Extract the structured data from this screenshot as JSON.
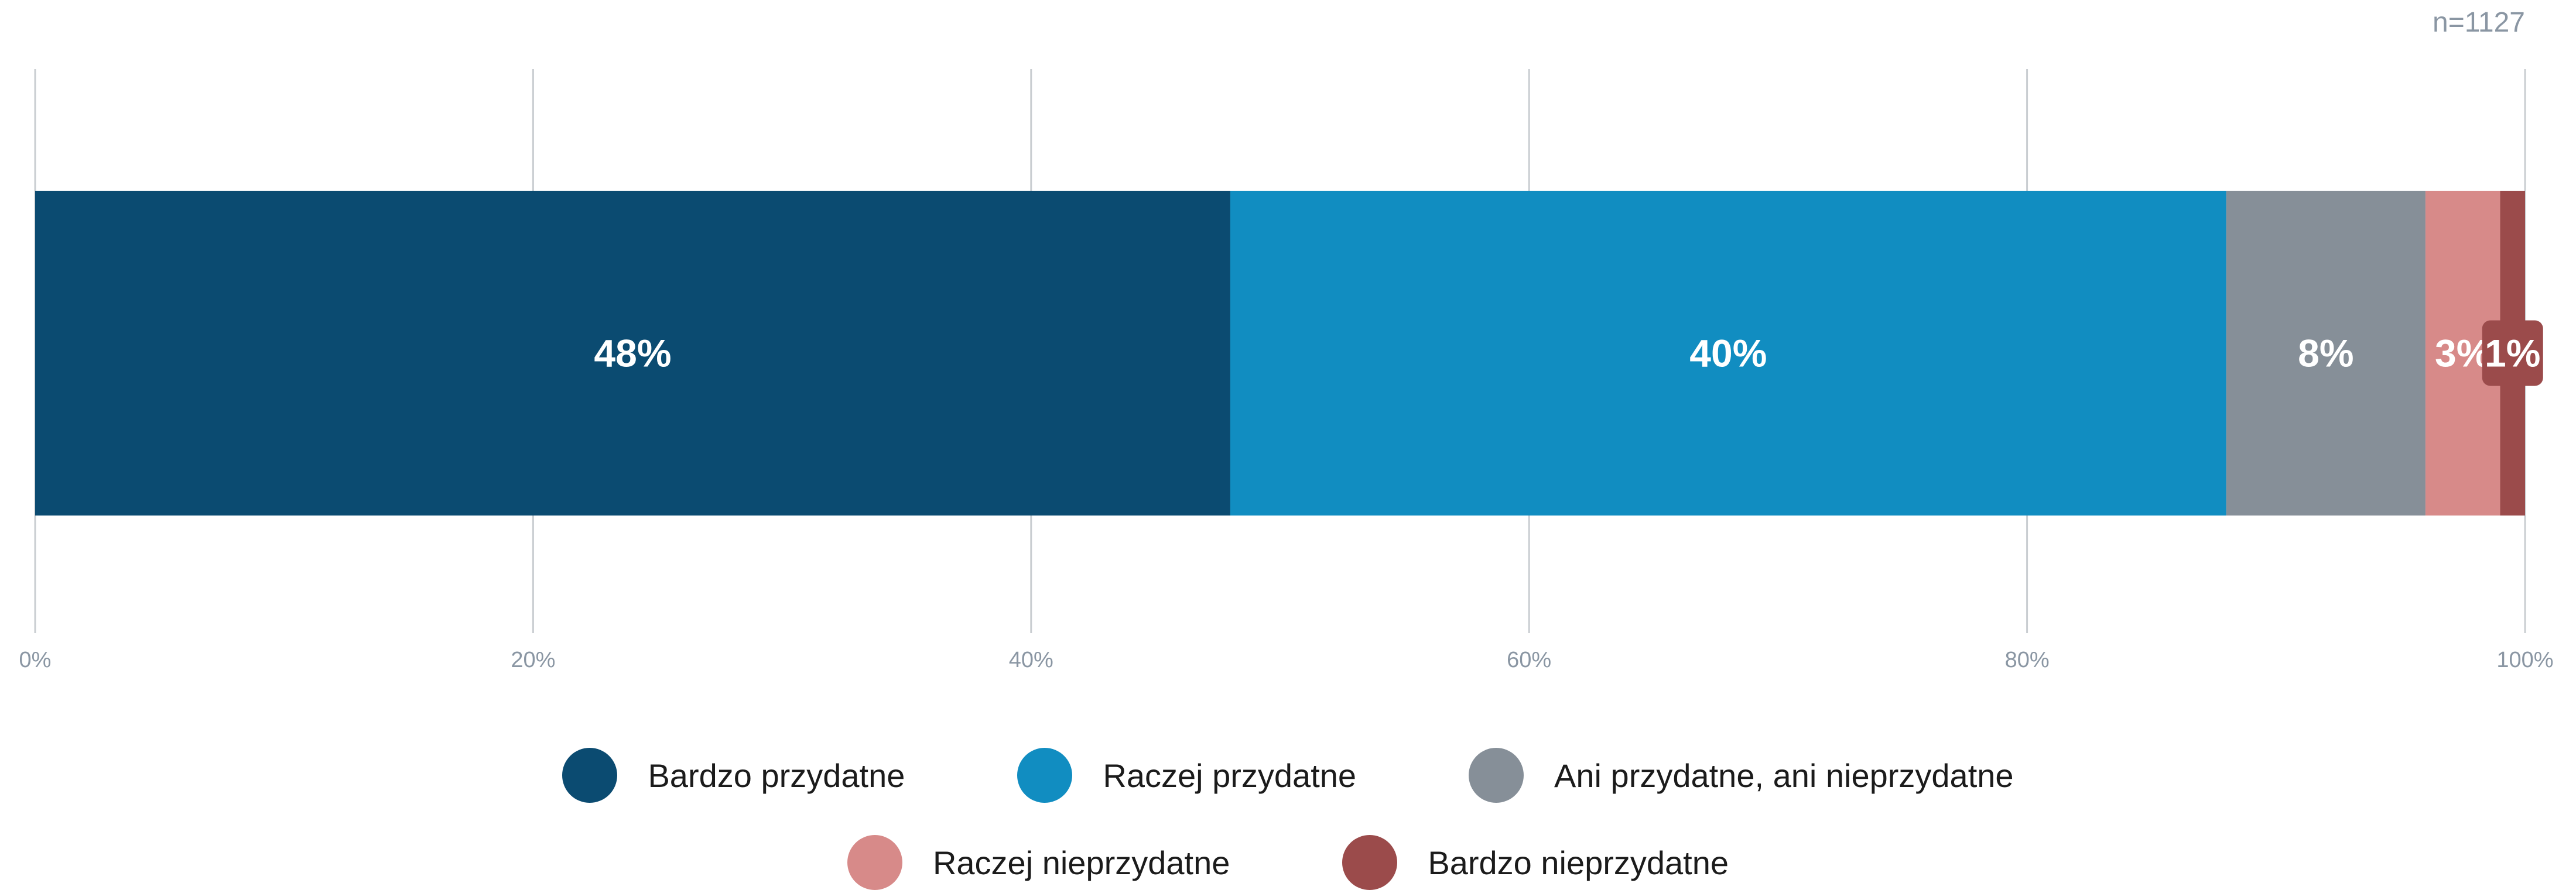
{
  "sample_size": "n=1127",
  "chart_data": {
    "type": "bar",
    "orientation": "horizontal",
    "stacked": true,
    "title": "",
    "xlabel": "",
    "ylabel": "",
    "xlim": [
      0,
      100
    ],
    "x_ticks": [
      0,
      20,
      40,
      60,
      80,
      100
    ],
    "x_tick_labels": [
      "0%",
      "20%",
      "40%",
      "60%",
      "80%",
      "100%"
    ],
    "grid": true,
    "legend_position": "bottom",
    "series": [
      {
        "name": "Bardzo przydatne",
        "value": 48,
        "label": "48%",
        "color": "#0b4b71"
      },
      {
        "name": "Raczej przydatne",
        "value": 40,
        "label": "40%",
        "color": "#118dc1"
      },
      {
        "name": "Ani przydatne, ani nieprzydatne",
        "value": 8,
        "label": "8%",
        "color": "#868f98"
      },
      {
        "name": "Raczej nieprzydatne",
        "value": 3,
        "label": "3%",
        "color": "#d78a89"
      },
      {
        "name": "Bardzo nieprzydatne",
        "value": 1,
        "label": "1%",
        "color": "#9b4b4b"
      }
    ]
  }
}
